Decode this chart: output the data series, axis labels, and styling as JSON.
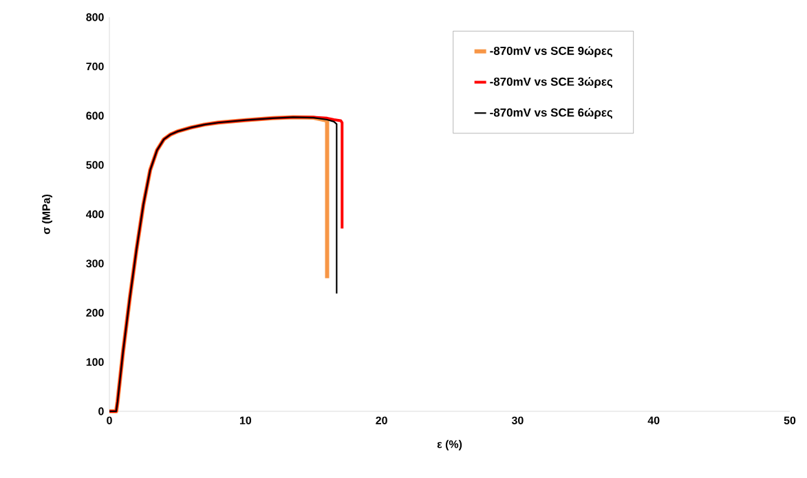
{
  "chart_data": {
    "type": "line",
    "xlabel": "ε (%)",
    "ylabel": "σ (MPa)",
    "xlim": [
      0,
      50
    ],
    "ylim": [
      0,
      800
    ],
    "xticks": [
      0,
      10,
      20,
      30,
      40,
      50
    ],
    "yticks": [
      0,
      100,
      200,
      300,
      400,
      500,
      600,
      700,
      800
    ],
    "grid": false,
    "legend": "top right",
    "line_style": "solid",
    "series": [
      {
        "name": "-870mV vs SCE 9ώρες",
        "color": "#f79646",
        "x": [
          0,
          0.5,
          0.6,
          1,
          1.5,
          2,
          2.5,
          3,
          3.5,
          4,
          4.5,
          5,
          6,
          7,
          8,
          10,
          12,
          13.5,
          15,
          16,
          16
        ],
        "values": [
          0,
          0,
          20,
          120,
          230,
          330,
          420,
          490,
          530,
          552,
          562,
          568,
          576,
          582,
          586,
          591,
          595,
          597,
          596,
          590,
          270
        ]
      },
      {
        "name": "-870mV vs SCE 3ώρες",
        "color": "#ff0000",
        "x": [
          0,
          0.5,
          0.6,
          1,
          1.5,
          2,
          2.5,
          3,
          3.5,
          4,
          4.5,
          5,
          6,
          7,
          8,
          10,
          12,
          13.5,
          15,
          16,
          16.5,
          17,
          17.1,
          17.1
        ],
        "values": [
          0,
          0,
          20,
          120,
          230,
          330,
          420,
          490,
          530,
          552,
          562,
          568,
          576,
          582,
          586,
          591,
          595,
          597,
          597,
          595,
          592,
          590,
          586,
          371
        ]
      },
      {
        "name": "-870mV vs SCE 6ώρες",
        "color": "#000000",
        "x": [
          0,
          0.5,
          0.6,
          1,
          1.5,
          2,
          2.5,
          3,
          3.5,
          4,
          4.5,
          5,
          6,
          7,
          8,
          10,
          12,
          13.5,
          15,
          16,
          16.5,
          16.7,
          16.7
        ],
        "values": [
          0,
          0,
          20,
          120,
          230,
          330,
          420,
          490,
          530,
          552,
          562,
          568,
          576,
          582,
          586,
          591,
          595,
          597,
          596,
          592,
          588,
          583,
          239
        ]
      }
    ]
  }
}
